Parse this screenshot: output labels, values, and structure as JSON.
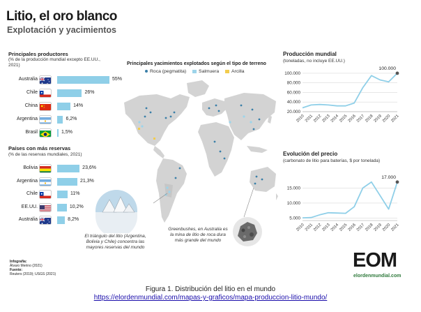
{
  "header": {
    "title": "Litio, el oro blanco",
    "subtitle": "Explotación y yacimientos"
  },
  "producers": {
    "title": "Principales productores",
    "note": "(% de la producción mundial excepto EE.UU., 2021)"
  },
  "reserves": {
    "title": "Países con más reservas",
    "note": "(% de las reservas mundiales, 2021)"
  },
  "map": {
    "title": "Principales yacimientos explotados según el tipo de terreno",
    "legend": {
      "roca": "Roca (pegmatita)",
      "salmuera": "Salmuera",
      "arcilla": "Arcilla"
    },
    "colors": {
      "roca": "#3a7fa8",
      "salmuera": "#9dd4ea",
      "arcilla": "#f2cc4e",
      "land": "#d3d3d3",
      "highlight": "#c6c6c6"
    },
    "annotation_triangle": "El triángulo del litio (Argentina, Bolivia y Chile) concentra las mayores reservas del mundo",
    "annotation_greenbushes": "Greenbushes, en Australia es la mina de litio de roca dura más grande del mundo"
  },
  "production_chart": {
    "title": "Producción mundial",
    "note": "(toneladas, no incluye EE.UU.)",
    "peak_label": "100.000"
  },
  "price_chart": {
    "title": "Evolución del precio",
    "note": "(carbonato de litio para baterías, $ por tonelada)",
    "peak_label": "17.000"
  },
  "credits": {
    "infographic_label": "Infografía:",
    "infographic_value": "Álvaro Merino (2021)",
    "source_label": "Fuente:",
    "source_value": "Reuters (2019); USGS (2021)"
  },
  "logo": {
    "mark": "EOM",
    "text": "elordenmundial.com"
  },
  "caption": {
    "text": "Figura 1. Distribución del litio en el mundo",
    "link": "https://elordenmundial.com/mapas-y-graficos/mapa-produccion-litio-mundo/"
  },
  "accent_color": "#8fcfe8",
  "line_color": "#8fcfe8",
  "chart_data": [
    {
      "type": "bar",
      "title": "Principales productores",
      "subtitle": "(% de la producción mundial excepto EE.UU., 2021)",
      "categories": [
        "Australia",
        "Chile",
        "China",
        "Argentina",
        "Brasil"
      ],
      "values": [
        55,
        26,
        14,
        6.2,
        1.5
      ],
      "value_labels": [
        "55%",
        "26%",
        "14%",
        "6,2%",
        "1,5%"
      ],
      "flags": [
        "australia-flag",
        "chile-flag",
        "china-flag",
        "argentina-flag",
        "brazil-flag"
      ],
      "orientation": "horizontal",
      "xlim": [
        0,
        55
      ]
    },
    {
      "type": "bar",
      "title": "Países con más reservas",
      "subtitle": "(% de las reservas mundiales, 2021)",
      "categories": [
        "Bolivia",
        "Argentina",
        "Chile",
        "EE.UU.",
        "Australia"
      ],
      "values": [
        23.6,
        21.3,
        11,
        10.2,
        8.2
      ],
      "value_labels": [
        "23,6%",
        "21,3%",
        "11%",
        "10,2%",
        "8,2%"
      ],
      "flags": [
        "bolivia-flag",
        "argentina-flag",
        "chile-flag",
        "usa-flag",
        "australia-flag"
      ],
      "orientation": "horizontal",
      "xlim": [
        0,
        55
      ]
    },
    {
      "type": "line",
      "title": "Producción mundial",
      "subtitle": "(toneladas, no incluye EE.UU.)",
      "x": [
        "2010",
        "2011",
        "2012",
        "2013",
        "2014",
        "2015",
        "2016",
        "2017",
        "2018",
        "2019",
        "2020",
        "2021"
      ],
      "y": [
        28000,
        34000,
        35000,
        34000,
        32000,
        32000,
        38000,
        70000,
        95000,
        86000,
        82000,
        100000
      ],
      "yticks": [
        20000,
        40000,
        60000,
        80000,
        100000
      ],
      "ytick_labels": [
        "20.000",
        "40.000",
        "60.000",
        "80.000",
        "100.000"
      ],
      "ylim": [
        20000,
        110000
      ],
      "annotation": "100.000",
      "grid": true
    },
    {
      "type": "line",
      "title": "Evolución del precio",
      "subtitle": "(carbonato de litio para baterías, $ por tonelada)",
      "x": [
        "2010",
        "2011",
        "2012",
        "2013",
        "2014",
        "2015",
        "2016",
        "2017",
        "2018",
        "2019",
        "2020",
        "2021"
      ],
      "y": [
        5100,
        5200,
        6100,
        6800,
        6700,
        6600,
        8800,
        15000,
        17000,
        12500,
        8000,
        17000
      ],
      "yticks": [
        5000,
        10000,
        15000
      ],
      "ytick_labels": [
        "5.000",
        "10.000",
        "15.000"
      ],
      "ylim": [
        4200,
        19500
      ],
      "annotation": "17.000",
      "grid": true
    }
  ]
}
